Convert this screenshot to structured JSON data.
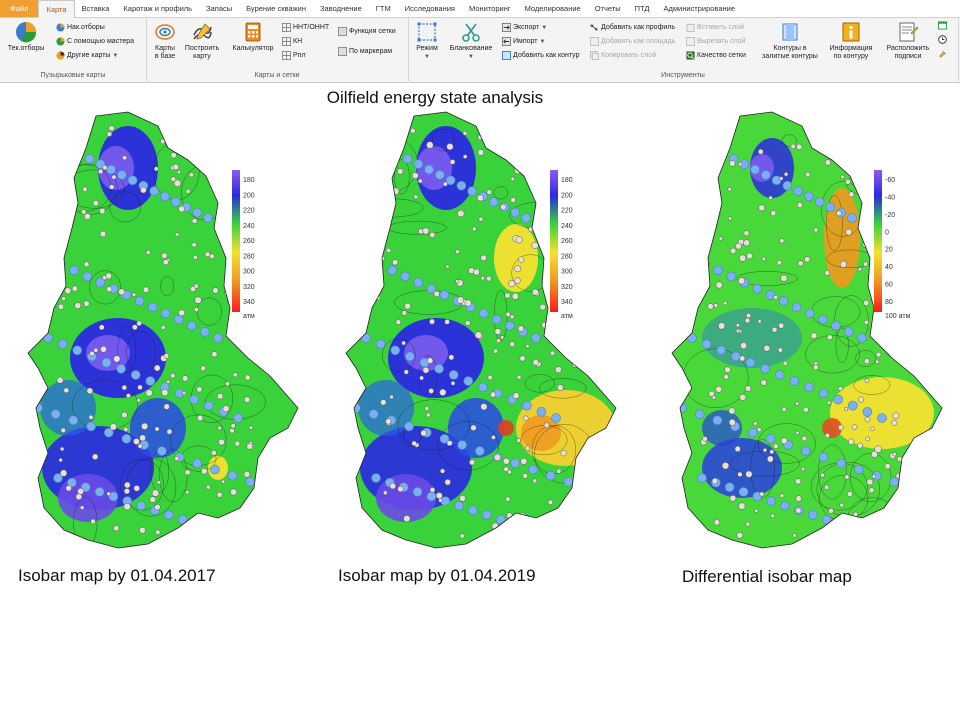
{
  "ribbon": {
    "tabs": [
      {
        "label": "Файл"
      },
      {
        "label": "Карта"
      },
      {
        "label": "Вставка"
      },
      {
        "label": "Каротаж и профиль"
      },
      {
        "label": "Запасы"
      },
      {
        "label": "Бурение скважин"
      },
      {
        "label": "Заводнение"
      },
      {
        "label": "ГТМ"
      },
      {
        "label": "Исследования"
      },
      {
        "label": "Мониторинг"
      },
      {
        "label": "Моделирование"
      },
      {
        "label": "Отчеты"
      },
      {
        "label": "ПТД"
      },
      {
        "label": "Администрирование"
      }
    ],
    "groups": {
      "bubble": {
        "label": "Пузырьковые карты",
        "cur_sel": "Тек.отборы",
        "acc_sel": "Нак.отборы",
        "wizard": "С помощью мастера",
        "other": "Другие карты"
      },
      "maps": {
        "label": "Карты и сетки",
        "db_maps_line1": "Карты",
        "db_maps_line2": "в базе",
        "build_line1": "Построить",
        "build_line2": "карту",
        "calc": "Калькулятор",
        "nnt": "ННТ/ОННТ",
        "kn": "КН",
        "rpl": "Рпл",
        "grid_func": "Функция сетки",
        "by_markers": "По маркерам"
      },
      "tools": {
        "label": "Инструменты",
        "mode": "Режим",
        "blank": "Бланкование",
        "export": "Экспорт",
        "import": "Импорт",
        "add_contour": "Добавить как контур",
        "add_profile": "Добавить как профиль",
        "add_area": "Добавить как площадь",
        "copy_layer": "Копировать слой",
        "paste_layer": "Вставить слой",
        "cut_layer": "Вырезать слой",
        "grid_quality": "Качество сетки",
        "contours_fill_line1": "Контуры в",
        "contours_fill_line2": "залитые контуры",
        "info_line1": "Информация",
        "info_line2": "по контуру",
        "place_line1": "Расположить",
        "place_line2": "подписи"
      }
    }
  },
  "title": "Oilfield energy state analysis",
  "maps": [
    {
      "caption": "Isobar map by 01.04.2017",
      "legend": {
        "ticks": [
          "180",
          "200",
          "220",
          "240",
          "260",
          "280",
          "300",
          "320",
          "340"
        ],
        "unit": "атм"
      },
      "colors": {
        "top": "#6a3dd8",
        "mid": "#3ad83a",
        "bottom": "#ff1a1a"
      }
    },
    {
      "caption": "Isobar map by 01.04.2019",
      "legend": {
        "ticks": [
          "180",
          "200",
          "220",
          "240",
          "260",
          "280",
          "300",
          "320",
          "340"
        ],
        "unit": "атм"
      },
      "colors": {
        "top": "#6a3dd8",
        "mid": "#3ad83a",
        "bottom": "#ff1a1a"
      }
    },
    {
      "caption": "Differential  isobar map",
      "legend": {
        "ticks": [
          "-60",
          "-40",
          "-20",
          "0",
          "20",
          "40",
          "60",
          "80"
        ],
        "bottom_label": "100 атм"
      },
      "colors": {
        "top": "#6a3dd8",
        "mid": "#3ad83a",
        "bottom": "#ff1a1a"
      }
    }
  ]
}
